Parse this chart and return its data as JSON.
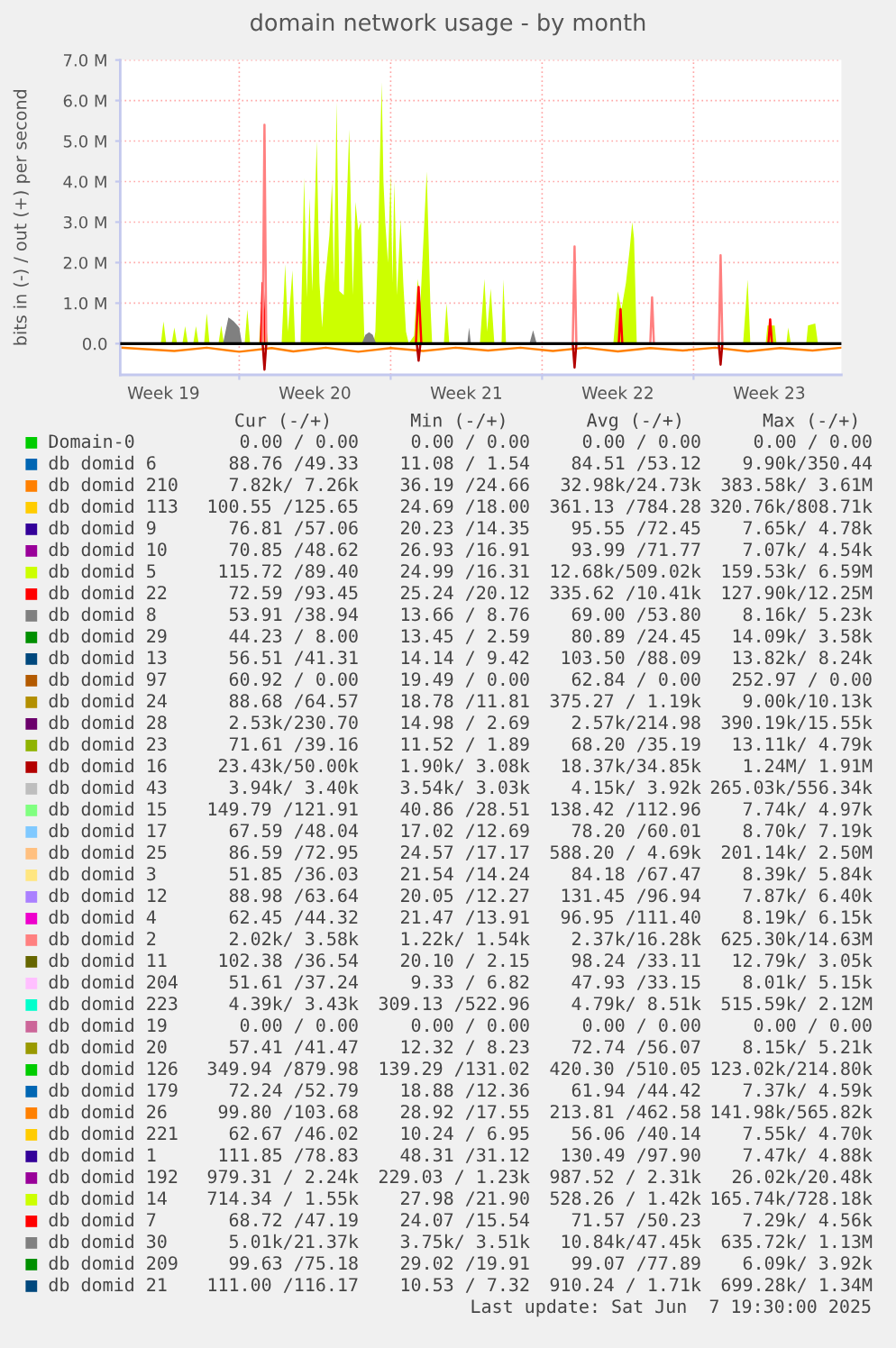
{
  "chart_data": {
    "type": "line",
    "title": "domain network usage - by month",
    "ylabel": "bits in (-) / out (+) per second",
    "xlim": [
      "2025-05-05T12:00",
      "2025-06-07T20:00"
    ],
    "xticks": [
      {
        "value": "2025-05-07T12:00",
        "label": "Week 19"
      },
      {
        "value": "2025-05-11T00:00",
        "label": null
      },
      {
        "value": "2025-05-14T12:00",
        "label": "Week 20"
      },
      {
        "value": "2025-05-18T00:00",
        "label": null
      },
      {
        "value": "2025-05-21T12:00",
        "label": "Week 21"
      },
      {
        "value": "2025-05-25T00:00",
        "label": null
      },
      {
        "value": "2025-05-28T12:00",
        "label": "Week 22"
      },
      {
        "value": "2025-06-01T00:00",
        "label": null
      },
      {
        "value": "2025-06-04T12:00",
        "label": "Week 23"
      }
    ],
    "ylim": [
      -0.77,
      7.0
    ],
    "yticks": [
      {
        "value": 0,
        "label": "0.0"
      },
      {
        "value": 1,
        "label": "1.0 M"
      },
      {
        "value": 2,
        "label": "2.0 M"
      },
      {
        "value": 3,
        "label": "3.0 M"
      },
      {
        "value": 4,
        "label": "4.0 M"
      },
      {
        "value": 5,
        "label": "5.0 M"
      },
      {
        "value": 6,
        "label": "6.0 M"
      },
      {
        "value": 7,
        "label": "7.0 M"
      }
    ],
    "grid": true,
    "legend": "bottom",
    "ref_lines": [
      {
        "axis": "y",
        "value": 0,
        "color": "#000000"
      }
    ],
    "series": [
      {
        "name": "Domain-0",
        "color": "#00cc00"
      },
      {
        "name": "db domid 6",
        "color": "#0066b3"
      },
      {
        "name": "db domid 210",
        "color": "#ff8000"
      },
      {
        "color": "#ff8000",
        "x": [
          "2025-05-05T12:00",
          "2025-05-08T00:00",
          "2025-05-09T12:00",
          "2025-05-11T00:00",
          "2025-05-12T12:00",
          "2025-05-13T12:00",
          "2025-05-15T00:00",
          "2025-05-16T12:00",
          "2025-05-18T00:00",
          "2025-05-19T12:00",
          "2025-05-21T00:00",
          "2025-05-22T12:00",
          "2025-05-24T00:00",
          "2025-05-25T12:00",
          "2025-05-27T00:00",
          "2025-05-28T12:00",
          "2025-05-30T00:00",
          "2025-05-31T12:00",
          "2025-06-02T00:00",
          "2025-06-03T12:00",
          "2025-06-05T00:00",
          "2025-06-06T12:00",
          "2025-06-07T20:00"
        ],
        "values": [
          -0.1,
          -0.18,
          -0.1,
          -0.2,
          -0.11,
          -0.19,
          -0.1,
          -0.2,
          -0.11,
          -0.18,
          -0.1,
          -0.17,
          -0.1,
          -0.18,
          -0.1,
          -0.19,
          -0.11,
          -0.17,
          -0.1,
          -0.19,
          -0.11,
          -0.17,
          -0.1
        ]
      },
      {
        "name": "db domid 113",
        "color": "#ffcc00"
      },
      {
        "name": "db domid 9",
        "color": "#330099"
      },
      {
        "name": "db domid 10",
        "color": "#990099"
      },
      {
        "name": "db domid 5",
        "color": "#ccff00",
        "type": "area",
        "x": [
          "2025-05-07T09:00",
          "2025-05-07T12:00",
          "2025-05-07T15:00",
          "2025-05-07T18:00",
          "2025-05-07T21:00",
          "2025-05-08T00:00",
          "2025-05-08T03:00",
          "2025-05-08T06:00",
          "2025-05-08T09:00",
          "2025-05-08T12:00",
          "2025-05-08T15:00",
          "2025-05-08T18:00",
          "2025-05-08T21:00",
          "2025-05-09T00:00",
          "2025-05-09T03:00",
          "2025-05-09T06:00",
          "2025-05-09T09:00",
          "2025-05-09T12:00",
          "2025-05-09T15:00",
          "2025-05-09T20:00",
          "2025-05-10T01:00",
          "2025-05-10T04:00",
          "2025-05-10T07:00",
          "2025-05-10T18:00",
          "2025-05-11T06:00",
          "2025-05-11T09:00",
          "2025-05-11T12:00",
          "2025-05-11T17:00",
          "2025-05-11T22:00",
          "2025-05-12T01:00",
          "2025-05-12T03:00",
          "2025-05-12T08:00",
          "2025-05-12T15:00",
          "2025-05-12T23:00",
          "2025-05-13T03:00",
          "2025-05-13T06:00",
          "2025-05-13T11:00",
          "2025-05-13T14:00",
          "2025-05-13T17:00",
          "2025-05-13T20:00",
          "2025-05-13T22:00",
          "2025-05-14T00:00",
          "2025-05-14T03:00",
          "2025-05-14T06:00",
          "2025-05-14T09:00",
          "2025-05-14T14:00",
          "2025-05-14T17:00",
          "2025-05-14T20:00",
          "2025-05-14T23:00",
          "2025-05-15T04:00",
          "2025-05-15T07:00",
          "2025-05-15T09:00",
          "2025-05-15T12:00",
          "2025-05-15T15:00",
          "2025-05-15T20:00",
          "2025-05-16T02:00",
          "2025-05-16T06:00",
          "2025-05-16T09:00",
          "2025-05-16T12:00",
          "2025-05-16T15:00",
          "2025-05-16T19:00",
          "2025-05-17T01:00",
          "2025-05-17T05:00",
          "2025-05-17T07:00",
          "2025-05-17T10:00",
          "2025-05-17T14:00",
          "2025-05-17T16:00",
          "2025-05-17T18:00",
          "2025-05-17T21:00",
          "2025-05-18T00:00",
          "2025-05-18T02:00",
          "2025-05-18T04:00",
          "2025-05-18T07:00",
          "2025-05-18T11:00",
          "2025-05-18T14:00",
          "2025-05-18T17:00",
          "2025-05-18T20:00",
          "2025-05-19T02:00",
          "2025-05-19T06:00",
          "2025-05-19T09:00",
          "2025-05-19T16:00",
          "2025-05-19T20:00",
          "2025-05-19T22:00",
          "2025-05-20T04:00",
          "2025-05-20T11:00",
          "2025-05-20T14:00",
          "2025-05-20T17:00",
          "2025-05-21T10:00",
          "2025-05-22T03:00",
          "2025-05-22T08:00",
          "2025-05-22T11:00",
          "2025-05-22T15:00",
          "2025-05-22T19:00",
          "2025-05-22T23:00",
          "2025-05-23T03:00",
          "2025-05-23T05:00",
          "2025-05-23T08:00",
          "2025-05-25T12:00",
          "2025-05-28T07:00",
          "2025-05-28T12:00",
          "2025-05-28T16:00",
          "2025-05-28T21:00",
          "2025-05-29T01:00",
          "2025-05-29T04:00",
          "2025-05-29T06:00",
          "2025-05-29T09:00",
          "2025-06-01T00:00",
          "2025-06-03T07:00",
          "2025-06-03T12:00",
          "2025-06-03T15:00",
          "2025-06-04T00:00",
          "2025-06-04T08:00",
          "2025-06-04T10:00",
          "2025-06-04T18:00",
          "2025-06-04T20:00",
          "2025-06-05T02:00",
          "2025-06-05T07:00",
          "2025-06-05T09:00",
          "2025-06-05T12:00",
          "2025-06-05T20:00",
          "2025-06-06T05:00",
          "2025-06-06T07:00",
          "2025-06-06T15:00",
          "2025-06-06T18:00"
        ],
        "values": [
          0,
          0.55,
          0,
          null,
          0,
          0.4,
          0,
          null,
          0,
          0.43,
          0,
          null,
          0,
          0.43,
          0,
          null,
          0,
          0.75,
          0,
          null,
          0,
          0.45,
          0,
          null,
          0,
          0.84,
          0,
          null,
          0,
          1.0,
          1.0,
          0,
          null,
          0,
          1.96,
          0.3,
          1.81,
          0,
          null,
          0,
          2.0,
          4.1,
          1.14,
          3.59,
          1.3,
          5.0,
          1.5,
          0.4,
          1.5,
          2.67,
          4.0,
          1.5,
          5.96,
          1.3,
          1.2,
          5.29,
          1.2,
          3.5,
          2.8,
          3.0,
          0,
          null,
          0,
          0.3,
          2.5,
          6.45,
          4.0,
          3.0,
          2.0,
          4.18,
          1.5,
          4.0,
          1.2,
          3.07,
          1.5,
          0.3,
          0,
          0.2,
          1.6,
          1.0,
          4.25,
          1.0,
          0,
          null,
          0,
          1.0,
          0,
          null,
          0,
          1.6,
          0.3,
          1.36,
          0,
          null,
          0,
          1.58,
          0,
          null,
          0,
          1.29,
          0.84,
          1.5,
          2.3,
          3.0,
          2.6,
          0,
          null,
          0,
          1.58,
          0,
          null,
          0,
          0.45,
          0.45,
          0,
          null,
          0,
          0.4,
          0,
          null,
          0,
          0.45,
          0.5,
          0
        ]
      },
      {
        "name": "db domid 22",
        "color": "#ff0000",
        "x": [
          "2025-05-12T00:00",
          "2025-05-12T02:00",
          "2025-05-12T05:00",
          "2025-05-15T00:00",
          "2025-05-19T04:00",
          "2025-05-19T07:00",
          "2025-05-19T10:00",
          "2025-05-24T00:00",
          "2025-05-28T13:00",
          "2025-05-28T15:00",
          "2025-05-28T17:00",
          "2025-06-01T00:00",
          "2025-06-04T11:00",
          "2025-06-04T13:00",
          "2025-06-04T15:00"
        ],
        "values": [
          0,
          1.5,
          0,
          null,
          0,
          1.4,
          0,
          null,
          0,
          0.85,
          0,
          null,
          0,
          0.6,
          0
        ]
      },
      {
        "name": "db domid 8",
        "color": "#808080"
      },
      {
        "name": "db domid 29",
        "color": "#008f00"
      },
      {
        "name": "db domid 13",
        "color": "#00487d"
      },
      {
        "name": "db domid 97",
        "color": "#b35a00"
      },
      {
        "name": "db domid 24",
        "color": "#b38f00"
      },
      {
        "name": "db domid 28",
        "color": "#6b006b"
      },
      {
        "name": "db domid 23",
        "color": "#8fb300"
      },
      {
        "name": "db domid 16",
        "color": "#b30000"
      },
      {
        "color": "#b30000",
        "x": [
          "2025-05-12T02:00",
          "2025-05-12T04:00",
          "2025-05-12T06:00",
          "2025-05-15T00:00",
          "2025-05-19T05:00",
          "2025-05-19T07:00",
          "2025-05-19T09:00",
          "2025-05-22T00:00",
          "2025-05-26T10:00",
          "2025-05-26T12:00",
          "2025-05-26T14:00",
          "2025-05-29T00:00",
          "2025-06-02T04:00",
          "2025-06-02T06:00",
          "2025-06-02T08:00"
        ],
        "values": [
          0,
          -0.64,
          0,
          null,
          0,
          -0.42,
          0,
          null,
          0,
          -0.59,
          0,
          null,
          0,
          -0.52,
          0
        ]
      },
      {
        "name": "db domid 43",
        "color": "#bebebe"
      },
      {
        "name": "db domid 15",
        "color": "#80ff80"
      },
      {
        "name": "db domid 17",
        "color": "#80c9ff"
      },
      {
        "name": "db domid 25",
        "color": "#ffc080"
      },
      {
        "name": "db domid 3",
        "color": "#ffe680"
      },
      {
        "name": "db domid 12",
        "color": "#aa80ff"
      },
      {
        "name": "db domid 4",
        "color": "#ee00cc"
      },
      {
        "name": "db domid 2",
        "color": "#ff8080",
        "x": [
          "2025-05-12T02:00",
          "2025-05-12T04:00",
          "2025-05-12T06:00",
          "2025-05-20T00:00",
          "2025-05-26T10:00",
          "2025-05-26T12:00",
          "2025-05-26T14:00",
          "2025-05-28T00:00",
          "2025-05-30T00:00",
          "2025-05-30T02:00",
          "2025-05-30T04:00",
          "2025-05-31T00:00",
          "2025-06-02T04:00",
          "2025-06-02T06:00",
          "2025-06-02T08:00"
        ],
        "values": [
          0,
          5.4,
          0,
          null,
          0,
          2.4,
          0,
          null,
          0,
          1.14,
          0,
          null,
          0,
          2.18,
          0
        ]
      },
      {
        "name": "db domid 11",
        "color": "#666600"
      },
      {
        "name": "db domid 204",
        "color": "#ffbfff"
      },
      {
        "name": "db domid 223",
        "color": "#00ffcc"
      },
      {
        "name": "db domid 19",
        "color": "#cc6699"
      },
      {
        "name": "db domid 20",
        "color": "#999900"
      },
      {
        "name": "db domid 126",
        "color": "#00cc00"
      },
      {
        "name": "db domid 179",
        "color": "#0066b3"
      },
      {
        "name": "db domid 26",
        "color": "#ff8000"
      },
      {
        "name": "db domid 221",
        "color": "#ffcc00"
      },
      {
        "name": "db domid 1",
        "color": "#330099"
      },
      {
        "name": "db domid 192",
        "color": "#990099"
      },
      {
        "name": "db domid 14",
        "color": "#ccff00"
      },
      {
        "name": "db domid 7",
        "color": "#ff0000"
      },
      {
        "name": "db domid 30",
        "color": "#808080",
        "type": "area",
        "x": [
          "2025-05-10T06:00",
          "2025-05-10T12:00",
          "2025-05-10T18:00",
          "2025-05-11T00:00",
          "2025-05-11T03:00",
          "2025-05-16T16:00",
          "2025-05-16T20:00",
          "2025-05-17T00:00",
          "2025-05-17T04:00",
          "2025-05-17T08:00",
          "2025-05-21T13:00",
          "2025-05-21T15:00",
          "2025-05-21T17:00",
          "2025-05-24T10:00",
          "2025-05-24T14:00",
          "2025-05-24T18:00"
        ],
        "values": [
          0,
          0.65,
          0.55,
          0.4,
          0,
          0,
          0.22,
          0.28,
          0.22,
          0,
          0,
          0.4,
          0,
          0,
          0.33,
          0
        ]
      },
      {
        "name": "db domid 209",
        "color": "#008f00"
      },
      {
        "name": "db domid 21",
        "color": "#00487d"
      }
    ],
    "annotations": [
      "Cur (-/+)",
      "Min (-/+)",
      "Avg (-/+)",
      "Max (-/+)",
      "0.00 / 0.00",
      "0.00 / 0.00",
      "0.00 / 0.00",
      "0.00 / 0.00",
      "88.76 /49.33",
      "11.08 / 1.54",
      "84.51 /53.12",
      "9.90k/350.44",
      "7.82k/ 7.26k",
      "36.19 /24.66",
      "32.98k/24.73k",
      "383.58k/ 3.61M",
      "100.55 /125.65",
      "24.69 /18.00",
      "361.13 /784.28",
      "320.76k/808.71k",
      "76.81 /57.06",
      "20.23 /14.35",
      "95.55 /72.45",
      "7.65k/ 4.78k",
      "70.85 /48.62",
      "26.93 /16.91",
      "93.99 /71.77",
      "7.07k/ 4.54k",
      "115.72 /89.40",
      "24.99 /16.31",
      "12.68k/509.02k",
      "159.53k/ 6.59M",
      "72.59 /93.45",
      "25.24 /20.12",
      "335.62 /10.41k",
      "127.90k/12.25M",
      "53.91 /38.94",
      "13.66 / 8.76",
      "69.00 /53.80",
      "8.16k/ 5.23k",
      "44.23 / 8.00",
      "13.45 / 2.59",
      "80.89 /24.45",
      "14.09k/ 3.58k",
      "56.51 /41.31",
      "14.14 / 9.42",
      "103.50 /88.09",
      "13.82k/ 8.24k",
      "60.92 / 0.00",
      "19.49 / 0.00",
      "62.84 / 0.00",
      "252.97 / 0.00",
      "88.68 /64.57",
      "18.78 /11.81",
      "375.27 / 1.19k",
      "9.00k/10.13k",
      "2.53k/230.70",
      "14.98 / 2.69",
      "2.57k/214.98",
      "390.19k/15.55k",
      "71.61 /39.16",
      "11.52 / 1.89",
      "68.20 /35.19",
      "13.11k/ 4.79k",
      "23.43k/50.00k",
      "1.90k/ 3.08k",
      "18.37k/34.85k",
      "1.24M/ 1.91M",
      "3.94k/ 3.40k",
      "3.54k/ 3.03k",
      "4.15k/ 3.92k",
      "265.03k/556.34k",
      "149.79 /121.91",
      "40.86 /28.51",
      "138.42 /112.96",
      "7.74k/ 4.97k",
      "67.59 /48.04",
      "17.02 /12.69",
      "78.20 /60.01",
      "8.70k/ 7.19k",
      "86.59 /72.95",
      "24.57 /17.17",
      "588.20 / 4.69k",
      "201.14k/ 2.50M",
      "51.85 /36.03",
      "21.54 /14.24",
      "84.18 /67.47",
      "8.39k/ 5.84k",
      "88.98 /63.64",
      "20.05 /12.27",
      "131.45 /96.94",
      "7.87k/ 6.40k",
      "62.45 /44.32",
      "21.47 /13.91",
      "96.95 /111.40",
      "8.19k/ 6.15k",
      "2.02k/ 3.58k",
      "1.22k/ 1.54k",
      "2.37k/16.28k",
      "625.30k/14.63M",
      "102.38 /36.54",
      "20.10 / 2.15",
      "98.24 /33.11",
      "12.79k/ 3.05k",
      "51.61 /37.24",
      "9.33 / 6.82",
      "47.93 /33.15",
      "8.01k/ 5.15k",
      "4.39k/ 3.43k",
      "309.13 /522.96",
      "4.79k/ 8.51k",
      "515.59k/ 2.12M",
      "0.00 / 0.00",
      "0.00 / 0.00",
      "0.00 / 0.00",
      "0.00 / 0.00",
      "57.41 /41.47",
      "12.32 / 8.23",
      "72.74 /56.07",
      "8.15k/ 5.21k",
      "349.94 /879.98",
      "139.29 /131.02",
      "420.30 /510.05",
      "123.02k/214.80k",
      "72.24 /52.79",
      "18.88 /12.36",
      "61.94 /44.42",
      "7.37k/ 4.59k",
      "99.80 /103.68",
      "28.92 /17.55",
      "213.81 /462.58",
      "141.98k/565.82k",
      "62.67 /46.02",
      "10.24 / 6.95",
      "56.06 /40.14",
      "7.55k/ 4.70k",
      "111.85 /78.83",
      "48.31 /31.12",
      "130.49 /97.90",
      "7.47k/ 4.88k",
      "979.31 / 2.24k",
      "229.03 / 1.23k",
      "987.52 / 2.31k",
      "26.02k/20.48k",
      "714.34 / 1.55k",
      "27.98 /21.90",
      "528.26 / 1.42k",
      "165.74k/728.18k",
      "68.72 /47.19",
      "24.07 /15.54",
      "71.57 /50.23",
      "7.29k/ 4.56k",
      "5.01k/21.37k",
      "3.75k/ 3.51k",
      "10.84k/47.45k",
      "635.72k/ 1.13M",
      "99.63 /75.18",
      "29.02 /19.91",
      "99.07 /77.89",
      "6.09k/ 3.92k",
      "111.00 /116.17",
      "10.53 / 7.32",
      "910.24 / 1.71k",
      "699.28k/ 1.34M",
      "Last update: Sat Jun  7 19:30:00 2025"
    ]
  }
}
